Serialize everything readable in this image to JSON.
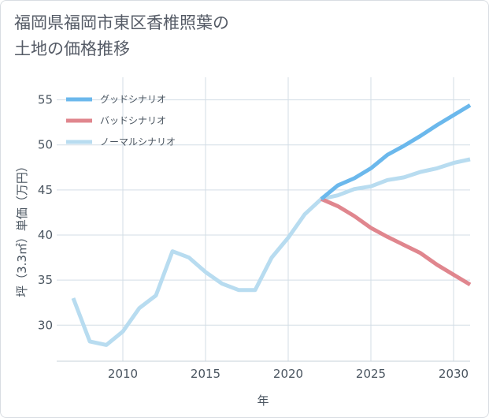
{
  "chart_data": {
    "type": "line",
    "title_lines": [
      "福岡県福岡市東区香椎照葉の",
      "土地の価格推移"
    ],
    "xlabel": "年",
    "ylabel": "坪（3.3㎡）単価（万円）",
    "xlim": [
      2006.0,
      2031.0
    ],
    "ylim": [
      26.0,
      57.5
    ],
    "x_ticks": [
      2010,
      2015,
      2020,
      2025,
      2030
    ],
    "y_ticks": [
      30,
      35,
      40,
      45,
      50,
      55
    ],
    "grid": true,
    "legend_position": "top-left",
    "series": [
      {
        "name": "グッドシナリオ",
        "color": "#6bb8ec",
        "x": [
          2022,
          2023,
          2024,
          2025,
          2026,
          2027,
          2028,
          2029,
          2030,
          2031
        ],
        "y": [
          44.0,
          45.5,
          46.3,
          47.4,
          48.9,
          49.9,
          51.0,
          52.2,
          53.3,
          54.4
        ]
      },
      {
        "name": "バッドシナリオ",
        "color": "#e0868e",
        "x": [
          2022,
          2023,
          2024,
          2025,
          2026,
          2027,
          2028,
          2029,
          2030,
          2031
        ],
        "y": [
          44.0,
          43.2,
          42.1,
          40.8,
          39.8,
          38.9,
          38.0,
          36.7,
          35.6,
          34.5
        ]
      },
      {
        "name": "ノーマルシナリオ",
        "color": "#b8dcf0",
        "x": [
          2007,
          2008,
          2009,
          2010,
          2011,
          2012,
          2013,
          2014,
          2015,
          2016,
          2017,
          2018,
          2019,
          2020,
          2021,
          2022,
          2023,
          2024,
          2025,
          2026,
          2027,
          2028,
          2029,
          2030,
          2031
        ],
        "y": [
          33.0,
          28.2,
          27.8,
          29.3,
          31.9,
          33.3,
          38.2,
          37.5,
          35.9,
          34.6,
          33.9,
          33.9,
          37.5,
          39.7,
          42.3,
          44.0,
          44.4,
          45.1,
          45.4,
          46.1,
          46.4,
          47.0,
          47.4,
          48.0,
          48.4
        ]
      }
    ]
  }
}
